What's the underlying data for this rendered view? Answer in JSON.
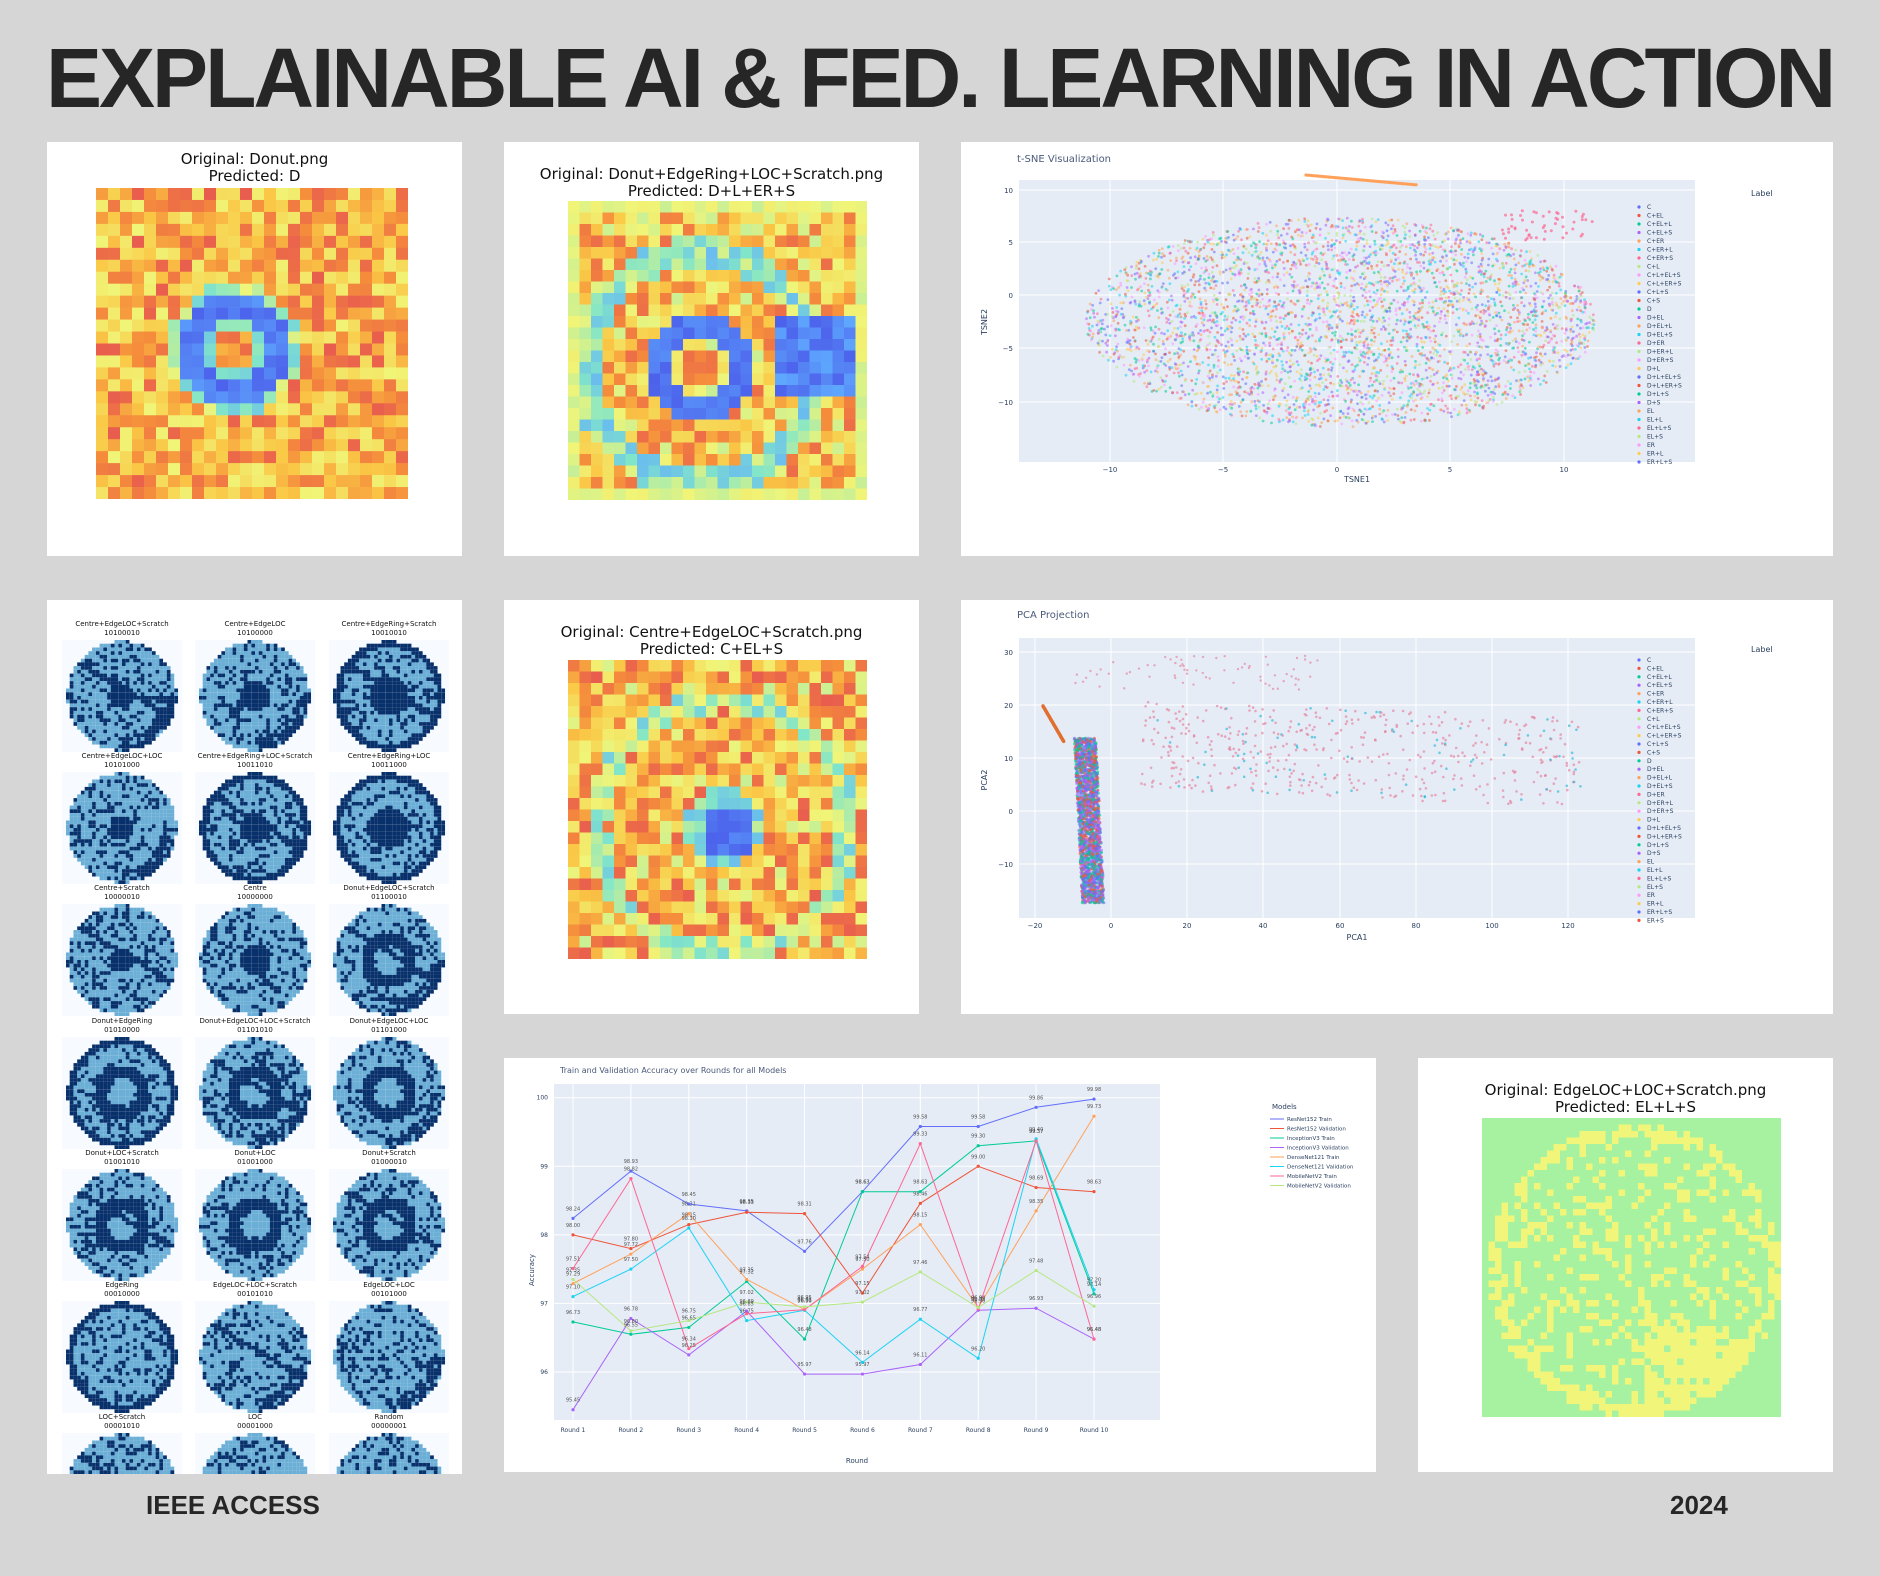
{
  "header": {
    "title": "EXPLAINABLE AI & FED. LEARNING IN ACTION"
  },
  "footer": {
    "left": "IEEE ACCESS",
    "right": "2024"
  },
  "panels": {
    "donut": {
      "line1": "Original: Donut.png",
      "line2": "Predicted: D"
    },
    "donut_combo": {
      "line1": "Original: Donut+EdgeRing+LOC+Scratch.png",
      "line2": "Predicted: D+L+ER+S"
    },
    "centre_combo": {
      "line1": "Original: Centre+EdgeLOC+Scratch.png",
      "line2": "Predicted: C+EL+S"
    },
    "edgeloc_combo": {
      "line1": "Original: EdgeLOC+LOC+Scratch.png",
      "line2": "Predicted: EL+L+S"
    }
  },
  "wafers": [
    {
      "name": "Centre+EdgeLOC+Scratch",
      "code": "10100010"
    },
    {
      "name": "Centre+EdgeLOC",
      "code": "10100000"
    },
    {
      "name": "Centre+EdgeRing+Scratch",
      "code": "10010010"
    },
    {
      "name": "Centre+EdgeLOC+LOC",
      "code": "10101000"
    },
    {
      "name": "Centre+EdgeRing+LOC+Scratch",
      "code": "10011010"
    },
    {
      "name": "Centre+EdgeRing+LOC",
      "code": "10011000"
    },
    {
      "name": "Centre+Scratch",
      "code": "10000010"
    },
    {
      "name": "Centre",
      "code": "10000000"
    },
    {
      "name": "Donut+EdgeLOC+Scratch",
      "code": "01100010"
    },
    {
      "name": "Donut+EdgeRing",
      "code": "01010000"
    },
    {
      "name": "Donut+EdgeLOC+LOC+Scratch",
      "code": "01101010"
    },
    {
      "name": "Donut+EdgeLOC+LOC",
      "code": "01101000"
    },
    {
      "name": "Donut+LOC+Scratch",
      "code": "01001010"
    },
    {
      "name": "Donut+LOC",
      "code": "01001000"
    },
    {
      "name": "Donut+Scratch",
      "code": "01000010"
    },
    {
      "name": "EdgeRing",
      "code": "00010000"
    },
    {
      "name": "EdgeLOC+LOC+Scratch",
      "code": "00101010"
    },
    {
      "name": "EdgeLOC+LOC",
      "code": "00101000"
    },
    {
      "name": "LOC+Scratch",
      "code": "00001010"
    },
    {
      "name": "LOC",
      "code": "00001000"
    },
    {
      "name": "Random",
      "code": "00000001"
    }
  ],
  "tsne": {
    "title": "t-SNE Visualization",
    "xlabel": "TSNE1",
    "ylabel": "TSNE2",
    "xticks": [
      "−10",
      "−5",
      "0",
      "5",
      "10"
    ],
    "yticks": [
      "10",
      "5",
      "0",
      "−5",
      "−10"
    ],
    "legend_title": "Label",
    "legend": [
      "C",
      "C+EL",
      "C+EL+L",
      "C+EL+S",
      "C+ER",
      "C+ER+L",
      "C+ER+S",
      "C+L",
      "C+L+EL+S",
      "C+L+ER+S",
      "C+L+S",
      "C+S",
      "D",
      "D+EL",
      "D+EL+L",
      "D+EL+S",
      "D+ER",
      "D+ER+L",
      "D+ER+S",
      "D+L",
      "D+L+EL+S",
      "D+L+ER+S",
      "D+L+S",
      "D+S",
      "EL",
      "EL+L",
      "EL+L+S",
      "EL+S",
      "ER",
      "ER+L",
      "ER+L+S"
    ]
  },
  "pca": {
    "title": "PCA Projection",
    "xlabel": "PCA1",
    "ylabel": "PCA2",
    "xticks": [
      "−20",
      "0",
      "20",
      "40",
      "60",
      "80",
      "100",
      "120"
    ],
    "yticks": [
      "30",
      "20",
      "10",
      "0",
      "−10"
    ],
    "legend_title": "Label",
    "legend": [
      "C",
      "C+EL",
      "C+EL+L",
      "C+EL+S",
      "C+ER",
      "C+ER+L",
      "C+ER+S",
      "C+L",
      "C+L+EL+S",
      "C+L+ER+S",
      "C+L+S",
      "C+S",
      "D",
      "D+EL",
      "D+EL+L",
      "D+EL+S",
      "D+ER",
      "D+ER+L",
      "D+ER+S",
      "D+L",
      "D+L+EL+S",
      "D+L+ER+S",
      "D+L+S",
      "D+S",
      "EL",
      "EL+L",
      "EL+L+S",
      "EL+S",
      "ER",
      "ER+L",
      "ER+L+S",
      "ER+S"
    ]
  },
  "chart_data": {
    "type": "line",
    "title": "Train and Validation Accuracy over Rounds for all Models",
    "xlabel": "Round",
    "ylabel": "Accuracy",
    "categories": [
      "Round 1",
      "Round 2",
      "Round 3",
      "Round 4",
      "Round 5",
      "Round 6",
      "Round 7",
      "Round 8",
      "Round 9",
      "Round 10"
    ],
    "yticks": [
      "100",
      "99",
      "98",
      "97",
      "96"
    ],
    "ylim": [
      95.3,
      100.2
    ],
    "legend_title": "Models",
    "series": [
      {
        "name": "ResNet152 Train",
        "color": "#636efa",
        "values": [
          98.24,
          98.93,
          98.45,
          98.35,
          97.76,
          98.63,
          99.58,
          99.58,
          99.86,
          99.98
        ]
      },
      {
        "name": "ResNet152 Validation",
        "color": "#ef553b",
        "values": [
          98.0,
          97.8,
          98.15,
          98.33,
          98.31,
          97.15,
          98.46,
          99.0,
          98.69,
          98.63
        ]
      },
      {
        "name": "InceptionV3 Train",
        "color": "#00cc96",
        "values": [
          96.73,
          96.55,
          96.65,
          97.32,
          96.48,
          98.63,
          98.63,
          99.3,
          99.37,
          97.14
        ]
      },
      {
        "name": "InceptionV3 Validation",
        "color": "#ab63fa",
        "values": [
          95.45,
          96.78,
          96.25,
          96.89,
          95.97,
          95.97,
          96.11,
          96.9,
          96.93,
          96.48
        ]
      },
      {
        "name": "DenseNet121 Train",
        "color": "#ffa15a",
        "values": [
          97.29,
          97.72,
          98.31,
          97.35,
          96.91,
          97.5,
          98.15,
          96.94,
          98.35,
          99.73
        ]
      },
      {
        "name": "DenseNet121 Validation",
        "color": "#19d3f3",
        "values": [
          97.1,
          97.5,
          98.1,
          96.75,
          96.9,
          96.14,
          96.77,
          96.2,
          99.4,
          97.2
        ]
      },
      {
        "name": "MobileNetV2 Train",
        "color": "#ff6692",
        "values": [
          97.51,
          98.82,
          96.34,
          96.85,
          96.91,
          97.54,
          99.33,
          96.92,
          99.37,
          96.48
        ]
      },
      {
        "name": "MobileNetV2 Validation",
        "color": "#b6e880",
        "values": [
          97.35,
          96.6,
          96.75,
          97.02,
          96.95,
          97.02,
          97.46,
          96.94,
          97.48,
          96.96
        ]
      }
    ]
  }
}
